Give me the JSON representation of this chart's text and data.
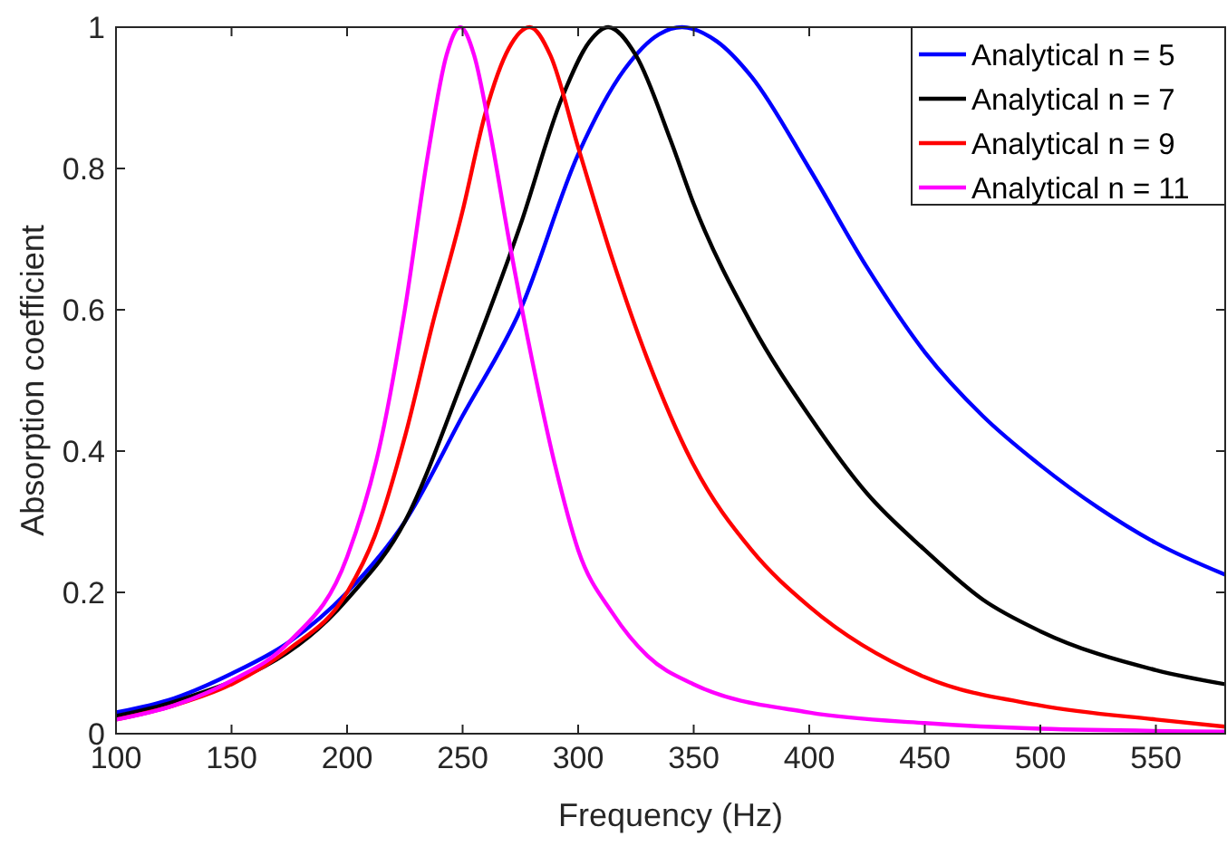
{
  "chart_data": {
    "type": "line",
    "xlabel": "Frequency  (Hz)",
    "ylabel": "Absorption coefficient",
    "xlim": [
      100,
      580
    ],
    "xticks": [
      100,
      150,
      200,
      250,
      300,
      350,
      400,
      450,
      500,
      550
    ],
    "ylim": [
      0,
      1
    ],
    "yticks": [
      0,
      0.2,
      0.4,
      0.6,
      0.8,
      1
    ],
    "grid": false,
    "legend": "top right",
    "marker": "none",
    "line_style": "solid",
    "series": [
      {
        "name": "Analytical n = 5",
        "color": "#0000ff",
        "x": [
          100,
          125,
          150,
          175,
          200,
          225,
          250,
          275,
          300,
          320,
          335,
          345,
          360,
          375,
          400,
          425,
          450,
          475,
          500,
          525,
          550,
          580
        ],
        "values": [
          0.03,
          0.05,
          0.085,
          0.13,
          0.2,
          0.3,
          0.45,
          0.6,
          0.82,
          0.94,
          0.99,
          1.0,
          0.98,
          0.93,
          0.8,
          0.66,
          0.54,
          0.45,
          0.38,
          0.32,
          0.27,
          0.225
        ]
      },
      {
        "name": "Analytical n = 7",
        "color": "#000000",
        "x": [
          100,
          125,
          200,
          225,
          250,
          275,
          293,
          305,
          313,
          325,
          340,
          350,
          375,
          400,
          425,
          450,
          475,
          500,
          550,
          580
        ],
        "values": [
          0.025,
          0.045,
          0.19,
          0.3,
          0.5,
          0.72,
          0.9,
          0.98,
          1.0,
          0.96,
          0.84,
          0.75,
          0.58,
          0.45,
          0.34,
          0.26,
          0.19,
          0.145,
          0.09,
          0.07
        ]
      },
      {
        "name": "Analytical n = 9",
        "color": "#ff0000",
        "x": [
          100,
          125,
          150,
          175,
          200,
          212,
          225,
          237,
          250,
          260,
          270,
          279,
          288,
          300,
          315,
          330,
          350,
          375,
          400,
          450,
          500,
          550,
          580
        ],
        "values": [
          0.02,
          0.04,
          0.07,
          0.12,
          0.2,
          0.28,
          0.42,
          0.58,
          0.74,
          0.88,
          0.97,
          1.0,
          0.96,
          0.83,
          0.67,
          0.53,
          0.38,
          0.26,
          0.18,
          0.08,
          0.04,
          0.02,
          0.01
        ]
      },
      {
        "name": "Analytical n = 11",
        "color": "#ff00ff",
        "x": [
          100,
          125,
          150,
          175,
          200,
          215,
          225,
          235,
          243,
          249,
          255,
          262,
          270,
          280,
          290,
          300,
          315,
          330,
          350,
          400,
          450,
          500,
          580
        ],
        "values": [
          0.02,
          0.04,
          0.075,
          0.13,
          0.25,
          0.42,
          0.6,
          0.82,
          0.96,
          1.0,
          0.96,
          0.85,
          0.7,
          0.53,
          0.38,
          0.26,
          0.17,
          0.11,
          0.07,
          0.03,
          0.015,
          0.007,
          0.003
        ]
      }
    ]
  }
}
